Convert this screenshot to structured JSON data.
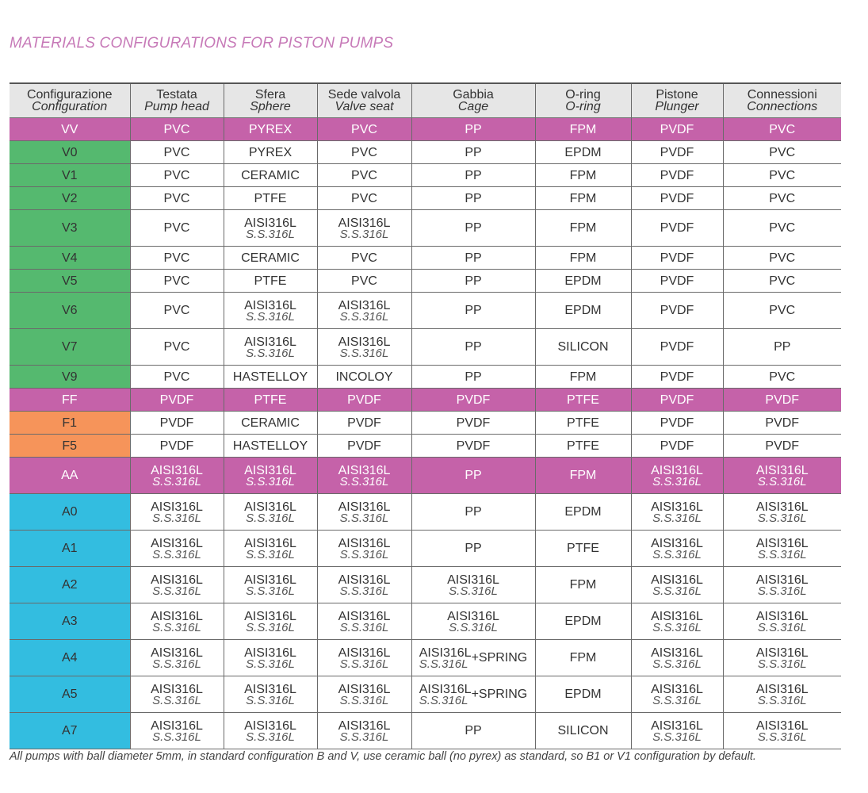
{
  "title": "MATERIALS CONFIGURATIONS FOR PISTON PUMPS",
  "colors": {
    "highlight": "#c562a9",
    "green": "#55b96f",
    "orange": "#f6945a",
    "cyan": "#33bde0",
    "header": "#e6e6e6"
  },
  "columns": [
    {
      "it": "Configurazione",
      "en": "Configuration"
    },
    {
      "it": "Testata",
      "en": "Pump head"
    },
    {
      "it": "Sfera",
      "en": "Sphere"
    },
    {
      "it": "Sede valvola",
      "en": "Valve seat"
    },
    {
      "it": "Gabbia",
      "en": "Cage"
    },
    {
      "it": "O-ring",
      "en": "O-ring"
    },
    {
      "it": "Pistone",
      "en": "Plunger"
    },
    {
      "it": "Connessioni",
      "en": "Connections"
    }
  ],
  "rows": [
    {
      "code": "VV",
      "group": "highlight",
      "highlight": true,
      "cells": [
        "PVC",
        "PYREX",
        "PVC",
        "PP",
        "FPM",
        "PVDF",
        "PVC"
      ]
    },
    {
      "code": "V0",
      "group": "green",
      "cells": [
        "PVC",
        "PYREX",
        "PVC",
        "PP",
        "EPDM",
        "PVDF",
        "PVC"
      ]
    },
    {
      "code": "V1",
      "group": "green",
      "cells": [
        "PVC",
        "CERAMIC",
        "PVC",
        "PP",
        "FPM",
        "PVDF",
        "PVC"
      ]
    },
    {
      "code": "V2",
      "group": "green",
      "cells": [
        "PVC",
        "PTFE",
        "PVC",
        "PP",
        "FPM",
        "PVDF",
        "PVC"
      ]
    },
    {
      "code": "V3",
      "group": "green",
      "cells": [
        "PVC",
        {
          "l1": "AISI316L",
          "l2": "S.S.316L"
        },
        {
          "l1": "AISI316L",
          "l2": "S.S.316L"
        },
        "PP",
        "FPM",
        "PVDF",
        "PVC"
      ]
    },
    {
      "code": "V4",
      "group": "green",
      "cells": [
        "PVC",
        "CERAMIC",
        "PVC",
        "PP",
        "FPM",
        "PVDF",
        "PVC"
      ]
    },
    {
      "code": "V5",
      "group": "green",
      "cells": [
        "PVC",
        "PTFE",
        "PVC",
        "PP",
        "EPDM",
        "PVDF",
        "PVC"
      ]
    },
    {
      "code": "V6",
      "group": "green",
      "cells": [
        "PVC",
        {
          "l1": "AISI316L",
          "l2": "S.S.316L"
        },
        {
          "l1": "AISI316L",
          "l2": "S.S.316L"
        },
        "PP",
        "EPDM",
        "PVDF",
        "PVC"
      ]
    },
    {
      "code": "V7",
      "group": "green",
      "cells": [
        "PVC",
        {
          "l1": "AISI316L",
          "l2": "S.S.316L"
        },
        {
          "l1": "AISI316L",
          "l2": "S.S.316L"
        },
        "PP",
        "SILICON",
        "PVDF",
        "PP"
      ]
    },
    {
      "code": "V9",
      "group": "green",
      "cells": [
        "PVC",
        "HASTELLOY",
        "INCOLOY",
        "PP",
        "FPM",
        "PVDF",
        "PVC"
      ]
    },
    {
      "code": "FF",
      "group": "highlight",
      "highlight": true,
      "cells": [
        "PVDF",
        "PTFE",
        "PVDF",
        "PVDF",
        "PTFE",
        "PVDF",
        "PVDF"
      ]
    },
    {
      "code": "F1",
      "group": "orange",
      "cells": [
        "PVDF",
        "CERAMIC",
        "PVDF",
        "PVDF",
        "PTFE",
        "PVDF",
        "PVDF"
      ]
    },
    {
      "code": "F5",
      "group": "orange",
      "cells": [
        "PVDF",
        "HASTELLOY",
        "PVDF",
        "PVDF",
        "PTFE",
        "PVDF",
        "PVDF"
      ]
    },
    {
      "code": "AA",
      "group": "highlight",
      "highlight": true,
      "cells": [
        {
          "l1": "AISI316L",
          "l2": "S.S.316L"
        },
        {
          "l1": "AISI316L",
          "l2": "S.S.316L"
        },
        {
          "l1": "AISI316L",
          "l2": "S.S.316L"
        },
        "PP",
        "FPM",
        {
          "l1": "AISI316L",
          "l2": "S.S.316L"
        },
        {
          "l1": "AISI316L",
          "l2": "S.S.316L"
        }
      ]
    },
    {
      "code": "A0",
      "group": "cyan",
      "cells": [
        {
          "l1": "AISI316L",
          "l2": "S.S.316L"
        },
        {
          "l1": "AISI316L",
          "l2": "S.S.316L"
        },
        {
          "l1": "AISI316L",
          "l2": "S.S.316L"
        },
        "PP",
        "EPDM",
        {
          "l1": "AISI316L",
          "l2": "S.S.316L"
        },
        {
          "l1": "AISI316L",
          "l2": "S.S.316L"
        }
      ]
    },
    {
      "code": "A1",
      "group": "cyan",
      "cells": [
        {
          "l1": "AISI316L",
          "l2": "S.S.316L"
        },
        {
          "l1": "AISI316L",
          "l2": "S.S.316L"
        },
        {
          "l1": "AISI316L",
          "l2": "S.S.316L"
        },
        "PP",
        "PTFE",
        {
          "l1": "AISI316L",
          "l2": "S.S.316L"
        },
        {
          "l1": "AISI316L",
          "l2": "S.S.316L"
        }
      ]
    },
    {
      "code": "A2",
      "group": "cyan",
      "cells": [
        {
          "l1": "AISI316L",
          "l2": "S.S.316L"
        },
        {
          "l1": "AISI316L",
          "l2": "S.S.316L"
        },
        {
          "l1": "AISI316L",
          "l2": "S.S.316L"
        },
        {
          "l1": "AISI316L",
          "l2": "S.S.316L"
        },
        "FPM",
        {
          "l1": "AISI316L",
          "l2": "S.S.316L"
        },
        {
          "l1": "AISI316L",
          "l2": "S.S.316L"
        }
      ]
    },
    {
      "code": "A3",
      "group": "cyan",
      "cells": [
        {
          "l1": "AISI316L",
          "l2": "S.S.316L"
        },
        {
          "l1": "AISI316L",
          "l2": "S.S.316L"
        },
        {
          "l1": "AISI316L",
          "l2": "S.S.316L"
        },
        {
          "l1": "AISI316L",
          "l2": "S.S.316L"
        },
        "EPDM",
        {
          "l1": "AISI316L",
          "l2": "S.S.316L"
        },
        {
          "l1": "AISI316L",
          "l2": "S.S.316L"
        }
      ]
    },
    {
      "code": "A4",
      "group": "cyan",
      "cells": [
        {
          "l1": "AISI316L",
          "l2": "S.S.316L"
        },
        {
          "l1": "AISI316L",
          "l2": "S.S.316L"
        },
        {
          "l1": "AISI316L",
          "l2": "S.S.316L"
        },
        {
          "l1": "AISI316L",
          "l2": "S.S.316L",
          "extra": "+SPRING"
        },
        "FPM",
        {
          "l1": "AISI316L",
          "l2": "S.S.316L"
        },
        {
          "l1": "AISI316L",
          "l2": "S.S.316L"
        }
      ]
    },
    {
      "code": "A5",
      "group": "cyan",
      "cells": [
        {
          "l1": "AISI316L",
          "l2": "S.S.316L"
        },
        {
          "l1": "AISI316L",
          "l2": "S.S.316L"
        },
        {
          "l1": "AISI316L",
          "l2": "S.S.316L"
        },
        {
          "l1": "AISI316L",
          "l2": "S.S.316L",
          "extra": "+SPRING"
        },
        "EPDM",
        {
          "l1": "AISI316L",
          "l2": "S.S.316L"
        },
        {
          "l1": "AISI316L",
          "l2": "S.S.316L"
        }
      ]
    },
    {
      "code": "A7",
      "group": "cyan",
      "cells": [
        {
          "l1": "AISI316L",
          "l2": "S.S.316L"
        },
        {
          "l1": "AISI316L",
          "l2": "S.S.316L"
        },
        {
          "l1": "AISI316L",
          "l2": "S.S.316L"
        },
        "PP",
        "SILICON",
        {
          "l1": "AISI316L",
          "l2": "S.S.316L"
        },
        {
          "l1": "AISI316L",
          "l2": "S.S.316L"
        }
      ]
    }
  ],
  "footer": "All pumps with ball diameter 5mm, in standard configuration B and V, use ceramic ball (no pyrex) as standard, so B1 or V1 configuration by default."
}
